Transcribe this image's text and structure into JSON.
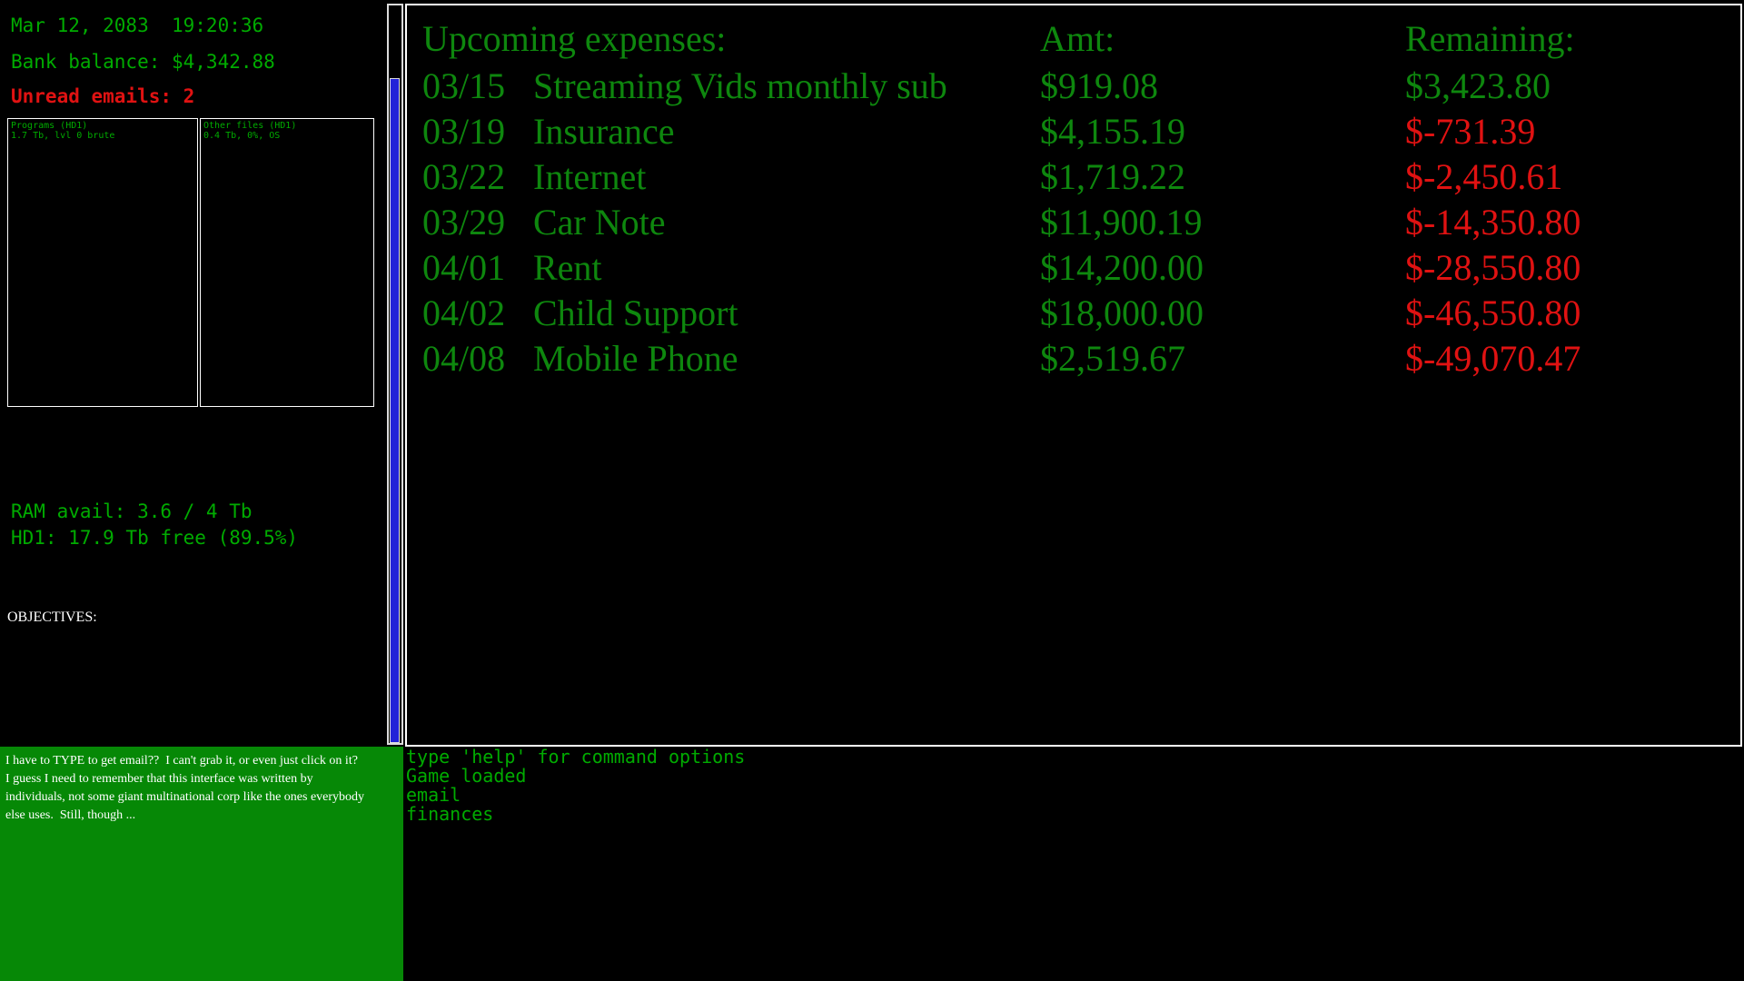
{
  "status": {
    "datetime": "Mar 12, 2083  19:20:36",
    "bank_balance": "Bank balance: $4,342.88",
    "unread_emails": "Unread emails: 2",
    "ram": "RAM avail: 3.6 / 4 Tb",
    "hd1": "HD1: 17.9 Tb free (89.5%)",
    "objectives_label": "OBJECTIVES:"
  },
  "drives": {
    "programs": {
      "title": "Programs (HD1)",
      "detail": "1.7 Tb, lvl 0 brute"
    },
    "other_files": {
      "title": "Other files (HD1)",
      "detail": "0.4 Tb, 0%, OS"
    }
  },
  "expenses": {
    "header": {
      "title": "Upcoming expenses:",
      "amt": "Amt:",
      "remaining": "Remaining:"
    },
    "rows": [
      {
        "date": "03/15",
        "name": "Streaming Vids monthly sub",
        "amt": "$919.08",
        "remaining": "$3,423.80",
        "negative": false
      },
      {
        "date": "03/19",
        "name": "Insurance",
        "amt": "$4,155.19",
        "remaining": "$-731.39",
        "negative": true
      },
      {
        "date": "03/22",
        "name": "Internet",
        "amt": "$1,719.22",
        "remaining": "$-2,450.61",
        "negative": true
      },
      {
        "date": "03/29",
        "name": "Car Note",
        "amt": "$11,900.19",
        "remaining": "$-14,350.80",
        "negative": true
      },
      {
        "date": "04/01",
        "name": "Rent",
        "amt": "$14,200.00",
        "remaining": "$-28,550.80",
        "negative": true
      },
      {
        "date": "04/02",
        "name": "Child Support",
        "amt": "$18,000.00",
        "remaining": "$-46,550.80",
        "negative": true
      },
      {
        "date": "04/08",
        "name": "Mobile Phone",
        "amt": "$2,519.67",
        "remaining": "$-49,070.47",
        "negative": true
      }
    ]
  },
  "message_box": {
    "lines": [
      "I have to TYPE to get email??  I can't grab it, or even just click on it?",
      "I guess I need to remember that this interface was written by",
      "individuals, not some giant multinational corp like the ones everybody",
      "else uses.  Still, though ..."
    ]
  },
  "terminal": {
    "lines": [
      "type 'help' for command options",
      "Game loaded",
      "email",
      "finances"
    ]
  },
  "colors": {
    "mono_green": "#00ab00",
    "serif_green": "#0e870e",
    "alert_red": "#e01212",
    "scrollbar_blue": "#2222d8",
    "message_box_green": "#068806",
    "border_white": "#ffffff"
  }
}
